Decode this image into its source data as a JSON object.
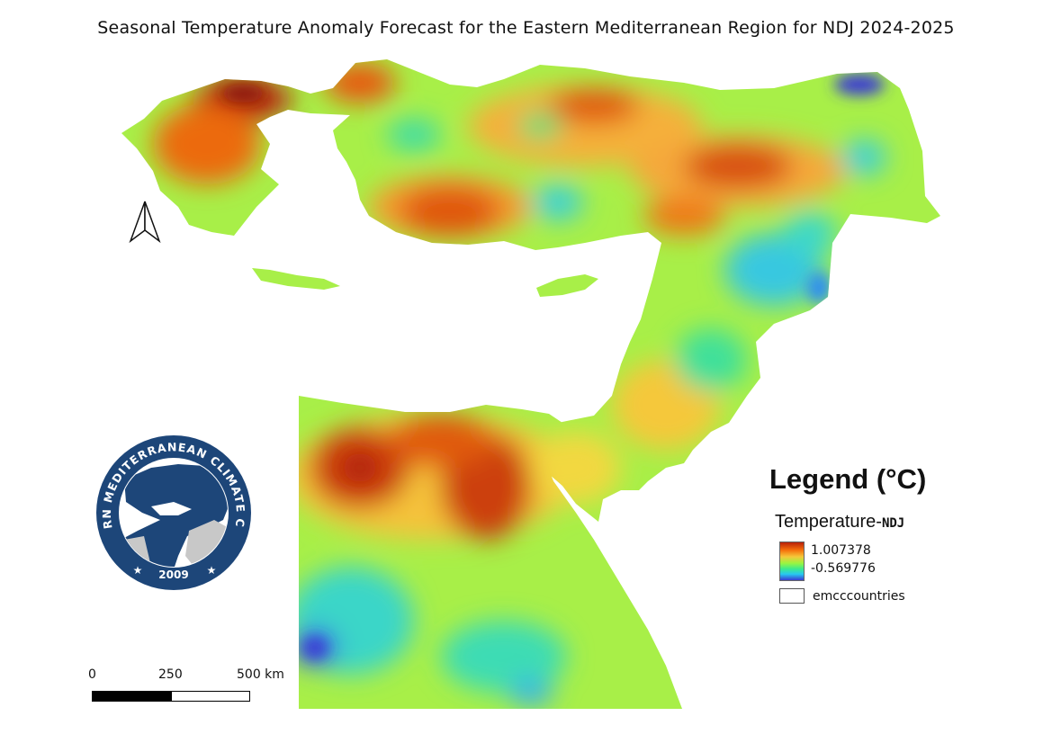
{
  "title": "Seasonal Temperature Anomaly Forecast for the Eastern Mediterranean Region for NDJ 2024-2025",
  "legend": {
    "heading": "Legend (°C)",
    "layer_name": "Temperature-",
    "layer_suffix": "NDJ",
    "ramp_max": "1.007378",
    "ramp_min": "-0.569776",
    "countries_label": "emcccountries",
    "ramp_colors": [
      "#b8200a",
      "#f56e0a",
      "#f5c83a",
      "#9af540",
      "#3ceb8c",
      "#28c8f0",
      "#3a3ad4"
    ]
  },
  "scale_bar": {
    "tick_0": "0",
    "tick_1": "250",
    "tick_2": "500 km"
  },
  "logo": {
    "text_top": "EASTERN MEDITERRANEAN CLIMATE CENTRE",
    "year": "2009"
  },
  "north_arrow": {
    "icon": "north-arrow-icon"
  }
}
